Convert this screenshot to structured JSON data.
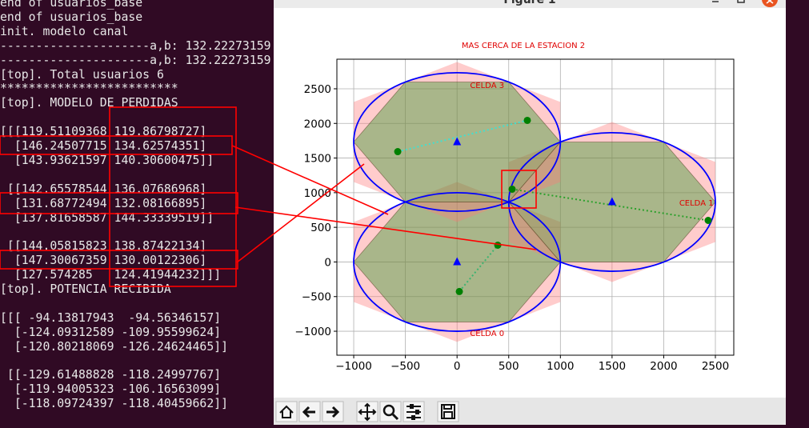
{
  "terminal": {
    "lines": [
      "end of usuarios_base",
      "end of usuarios_base",
      "init. modelo canal",
      "---------------------a,b: 132.22273159",
      "---------------------a,b: 132.22273159",
      "[top]. Total usuarios 6",
      "*************************",
      "[top]. MODELO DE PERDIDAS",
      "[[[119.51109368 119.86798727]",
      "  [146.24507715 134.62574351]",
      "  [143.93621597 140.30600475]]",
      " [[142.65578544 136.07686968]",
      "  [131.68772494 132.08166895]",
      "  [137.81658587 144.33339519]]",
      " [[144.05815823 138.87422134]",
      "  [147.30067359 130.00122306]",
      "  [127.574285   124.41944232]]]",
      "[top]. POTENCIA RECIBIDA",
      "[[[ -94.13817943  -94.56346157]",
      "  [-124.09312589 -109.95599624]",
      "  [-120.80218069 -126.24624465]]",
      " [[-129.61488828 -118.24997767]",
      "  [-119.94005323 -106.16563099]",
      "  [-118.09724397 -118.40459662]]"
    ]
  },
  "window": {
    "title": "Figure 1"
  },
  "chart_data": {
    "type": "scatter",
    "title": "MAS CERCA DE LA ESTACION 2",
    "xlim": [
      -1163,
      2678
    ],
    "ylim": [
      -1346,
      2927
    ],
    "xticks": [
      {
        "value": -1000,
        "label": "−1000"
      },
      {
        "value": -500,
        "label": "−500"
      },
      0,
      500,
      1000,
      1500,
      2000,
      2500
    ],
    "yticks": [
      {
        "value": -1000,
        "label": "−1000"
      },
      {
        "value": -500,
        "label": "−500"
      },
      0,
      500,
      1000,
      1500,
      2000,
      2500
    ],
    "grid": true,
    "cells": [
      {
        "label": "CELDA 0",
        "x": 0,
        "y": 0,
        "radius": 1000
      },
      {
        "label": "CELDA 1",
        "x": 1500,
        "y": 866,
        "radius": 1000
      },
      {
        "label": "CELDA 3",
        "x": 0,
        "y": 1732,
        "radius": 1000
      }
    ],
    "links": [
      {
        "color": "#40e0d0",
        "x": [
          -574,
          680
        ],
        "y": [
          1593,
          2044
        ]
      },
      {
        "color": "#2ca02c",
        "x": [
          533,
          2430
        ],
        "y": [
          1051,
          600
        ]
      },
      {
        "color": "#3cb371",
        "x": [
          22,
          394
        ],
        "y": [
          -427,
          242
        ]
      }
    ],
    "series": [
      {
        "color": "#008000",
        "marker": "circle",
        "x": [
          -574,
          680,
          533,
          2430,
          394,
          22
        ],
        "y": [
          1593,
          2044,
          1051,
          600,
          242,
          -427
        ]
      },
      {
        "color": "#0000ff",
        "marker": "triangle",
        "x": [
          0,
          1500,
          0
        ],
        "y": [
          0,
          866,
          1732
        ]
      }
    ]
  }
}
